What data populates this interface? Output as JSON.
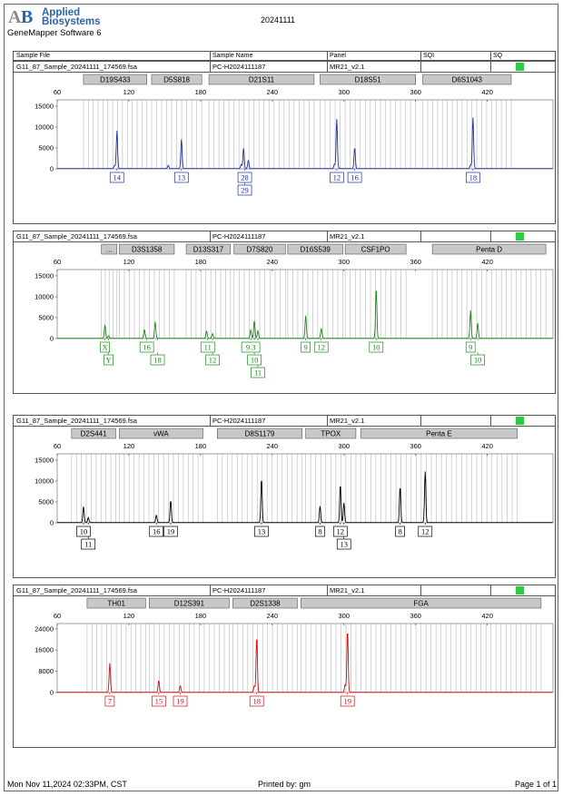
{
  "header": {
    "logo_line1": "Applied",
    "logo_line2": "Biosystems",
    "software": "GeneMapper Software 6",
    "date": "20241111"
  },
  "table_header": {
    "sample_file": "Sample File",
    "sample_name": "Sample Name",
    "panel": "Panel",
    "sqi": "SQI",
    "sq": "SQ"
  },
  "footer": {
    "printed_date": "Mon Nov 11,2024 02:33PM, CST",
    "printed_by": "Printed by: gm",
    "page": "Page 1 of 1"
  },
  "colors": {
    "blue": "#1f2f9e",
    "green": "#1a8a1a",
    "black": "#000000",
    "red": "#cc1111",
    "quality": "#2ecc40",
    "locus_fill": "#c8c8c8",
    "bin_line": "#c0c0c0"
  },
  "chart_data": [
    {
      "type": "line",
      "dye": "blue",
      "sample_file": "G11_87_Sample_20241111_174569.fsa",
      "sample_name": "PC-H2024111187",
      "panel": "MR21_v2.1",
      "x_ticks": [
        60,
        120,
        180,
        240,
        300,
        360,
        420
      ],
      "y_ticks": [
        0,
        5000,
        10000,
        15000
      ],
      "xlim": [
        60,
        475
      ],
      "ylim": [
        0,
        16500
      ],
      "loci": [
        {
          "name": "D19S433",
          "start": 82,
          "end": 135
        },
        {
          "name": "D5S818",
          "start": 139,
          "end": 181
        },
        {
          "name": "D21S11",
          "start": 187,
          "end": 275
        },
        {
          "name": "D18S51",
          "start": 280,
          "end": 360
        },
        {
          "name": "D6S1043",
          "start": 366,
          "end": 440
        }
      ],
      "peaks": [
        {
          "x": 108,
          "h": 700
        },
        {
          "x": 110,
          "h": 9000
        },
        {
          "x": 153,
          "h": 800
        },
        {
          "x": 164,
          "h": 7000
        },
        {
          "x": 214,
          "h": 1000
        },
        {
          "x": 216,
          "h": 4800
        },
        {
          "x": 220,
          "h": 2000
        },
        {
          "x": 292,
          "h": 1000
        },
        {
          "x": 294,
          "h": 11800
        },
        {
          "x": 309,
          "h": 5000
        },
        {
          "x": 406,
          "h": 900
        },
        {
          "x": 408,
          "h": 12200
        }
      ],
      "labels": [
        {
          "x": 110,
          "rows": [
            "14"
          ]
        },
        {
          "x": 164,
          "rows": [
            "13"
          ]
        },
        {
          "x": 217,
          "rows": [
            "28",
            "29"
          ]
        },
        {
          "x": 294,
          "rows": [
            "12"
          ]
        },
        {
          "x": 309,
          "rows": [
            "16"
          ]
        },
        {
          "x": 408,
          "rows": [
            "18"
          ]
        }
      ]
    },
    {
      "type": "line",
      "dye": "green",
      "sample_file": "G11_87_Sample_20241111_174569.fsa",
      "sample_name": "PC-H2024111187",
      "panel": "MR21_v2.1",
      "x_ticks": [
        60,
        120,
        180,
        240,
        300,
        360,
        420
      ],
      "y_ticks": [
        0,
        5000,
        10000,
        15000
      ],
      "xlim": [
        60,
        475
      ],
      "ylim": [
        0,
        16500
      ],
      "loci": [
        {
          "name": "...",
          "start": 97,
          "end": 110
        },
        {
          "name": "D3S1358",
          "start": 112,
          "end": 158
        },
        {
          "name": "D13S317",
          "start": 168,
          "end": 205
        },
        {
          "name": "D7S820",
          "start": 208,
          "end": 251
        },
        {
          "name": "D16S539",
          "start": 253,
          "end": 299
        },
        {
          "name": "CSF1PO",
          "start": 301,
          "end": 352
        },
        {
          "name": "Penta D",
          "start": 374,
          "end": 469
        }
      ],
      "peaks": [
        {
          "x": 100,
          "h": 3200
        },
        {
          "x": 103,
          "h": 600
        },
        {
          "x": 133,
          "h": 2100
        },
        {
          "x": 142,
          "h": 3900
        },
        {
          "x": 185,
          "h": 1800
        },
        {
          "x": 190,
          "h": 1100
        },
        {
          "x": 222,
          "h": 2000
        },
        {
          "x": 225,
          "h": 4300
        },
        {
          "x": 228,
          "h": 1800
        },
        {
          "x": 268,
          "h": 5400
        },
        {
          "x": 281,
          "h": 2400
        },
        {
          "x": 327,
          "h": 12000
        },
        {
          "x": 406,
          "h": 6700
        },
        {
          "x": 412,
          "h": 3600
        }
      ],
      "labels": [
        {
          "x": 100,
          "rows": [
            "X"
          ]
        },
        {
          "x": 103,
          "rows": [
            "",
            "Y"
          ]
        },
        {
          "x": 135,
          "rows": [
            "16"
          ]
        },
        {
          "x": 144,
          "rows": [
            "",
            "18"
          ]
        },
        {
          "x": 186,
          "rows": [
            "11"
          ]
        },
        {
          "x": 190,
          "rows": [
            "",
            "12"
          ]
        },
        {
          "x": 222,
          "rows": [
            "9.3"
          ]
        },
        {
          "x": 225,
          "rows": [
            "",
            "10"
          ]
        },
        {
          "x": 228,
          "rows": [
            "",
            "",
            "11"
          ]
        },
        {
          "x": 268,
          "rows": [
            "9"
          ]
        },
        {
          "x": 281,
          "rows": [
            "12"
          ]
        },
        {
          "x": 327,
          "rows": [
            "10"
          ]
        },
        {
          "x": 406,
          "rows": [
            "9"
          ]
        },
        {
          "x": 412,
          "rows": [
            "",
            "10"
          ]
        }
      ]
    },
    {
      "type": "line",
      "dye": "black",
      "sample_file": "G11_87_Sample_20241111_174569.fsa",
      "sample_name": "PC-H2024111187",
      "panel": "MR21_v2.1",
      "x_ticks": [
        60,
        120,
        180,
        240,
        300,
        360,
        420
      ],
      "y_ticks": [
        0,
        5000,
        10000,
        15000
      ],
      "xlim": [
        60,
        475
      ],
      "ylim": [
        0,
        16500
      ],
      "loci": [
        {
          "name": "D2S441",
          "start": 72,
          "end": 109
        },
        {
          "name": "vWA",
          "start": 112,
          "end": 182
        },
        {
          "name": "D8S1179",
          "start": 194,
          "end": 265
        },
        {
          "name": "TPOX",
          "start": 268,
          "end": 310
        },
        {
          "name": "Penta E",
          "start": 314,
          "end": 445
        }
      ],
      "peaks": [
        {
          "x": 82,
          "h": 3800
        },
        {
          "x": 86,
          "h": 1200
        },
        {
          "x": 143,
          "h": 1800
        },
        {
          "x": 155,
          "h": 5300
        },
        {
          "x": 231,
          "h": 10500
        },
        {
          "x": 280,
          "h": 3900
        },
        {
          "x": 297,
          "h": 9100
        },
        {
          "x": 300,
          "h": 4700
        },
        {
          "x": 347,
          "h": 8600
        },
        {
          "x": 368,
          "h": 12200
        }
      ],
      "labels": [
        {
          "x": 82,
          "rows": [
            "10"
          ]
        },
        {
          "x": 86,
          "rows": [
            "",
            "11"
          ]
        },
        {
          "x": 143,
          "rows": [
            "16"
          ]
        },
        {
          "x": 155,
          "rows": [
            "19"
          ]
        },
        {
          "x": 231,
          "rows": [
            "13"
          ]
        },
        {
          "x": 280,
          "rows": [
            "8"
          ]
        },
        {
          "x": 297,
          "rows": [
            "12"
          ]
        },
        {
          "x": 300,
          "rows": [
            "",
            "13"
          ]
        },
        {
          "x": 347,
          "rows": [
            "8"
          ]
        },
        {
          "x": 368,
          "rows": [
            "12"
          ]
        }
      ]
    },
    {
      "type": "line",
      "dye": "red",
      "sample_file": "G11_87_Sample_20241111_174569.fsa",
      "sample_name": "PC-H2024111187",
      "panel": "MR21_v2.1",
      "x_ticks": [
        60,
        120,
        180,
        240,
        300,
        360,
        420
      ],
      "y_ticks": [
        0,
        8000,
        16000,
        24000
      ],
      "xlim": [
        60,
        475
      ],
      "ylim": [
        0,
        26000
      ],
      "loci": [
        {
          "name": "TH01",
          "start": 85,
          "end": 134
        },
        {
          "name": "D12S391",
          "start": 137,
          "end": 204
        },
        {
          "name": "D2S1338",
          "start": 207,
          "end": 261
        },
        {
          "name": "FGA",
          "start": 264,
          "end": 465
        }
      ],
      "peaks": [
        {
          "x": 104,
          "h": 11000
        },
        {
          "x": 145,
          "h": 4500
        },
        {
          "x": 163,
          "h": 2500
        },
        {
          "x": 225,
          "h": 2500
        },
        {
          "x": 227,
          "h": 21000
        },
        {
          "x": 301,
          "h": 3000
        },
        {
          "x": 303,
          "h": 23500
        }
      ],
      "labels": [
        {
          "x": 104,
          "rows": [
            "7"
          ]
        },
        {
          "x": 145,
          "rows": [
            "15"
          ]
        },
        {
          "x": 163,
          "rows": [
            "19"
          ]
        },
        {
          "x": 227,
          "rows": [
            "18"
          ]
        },
        {
          "x": 303,
          "rows": [
            "19"
          ]
        }
      ]
    }
  ]
}
